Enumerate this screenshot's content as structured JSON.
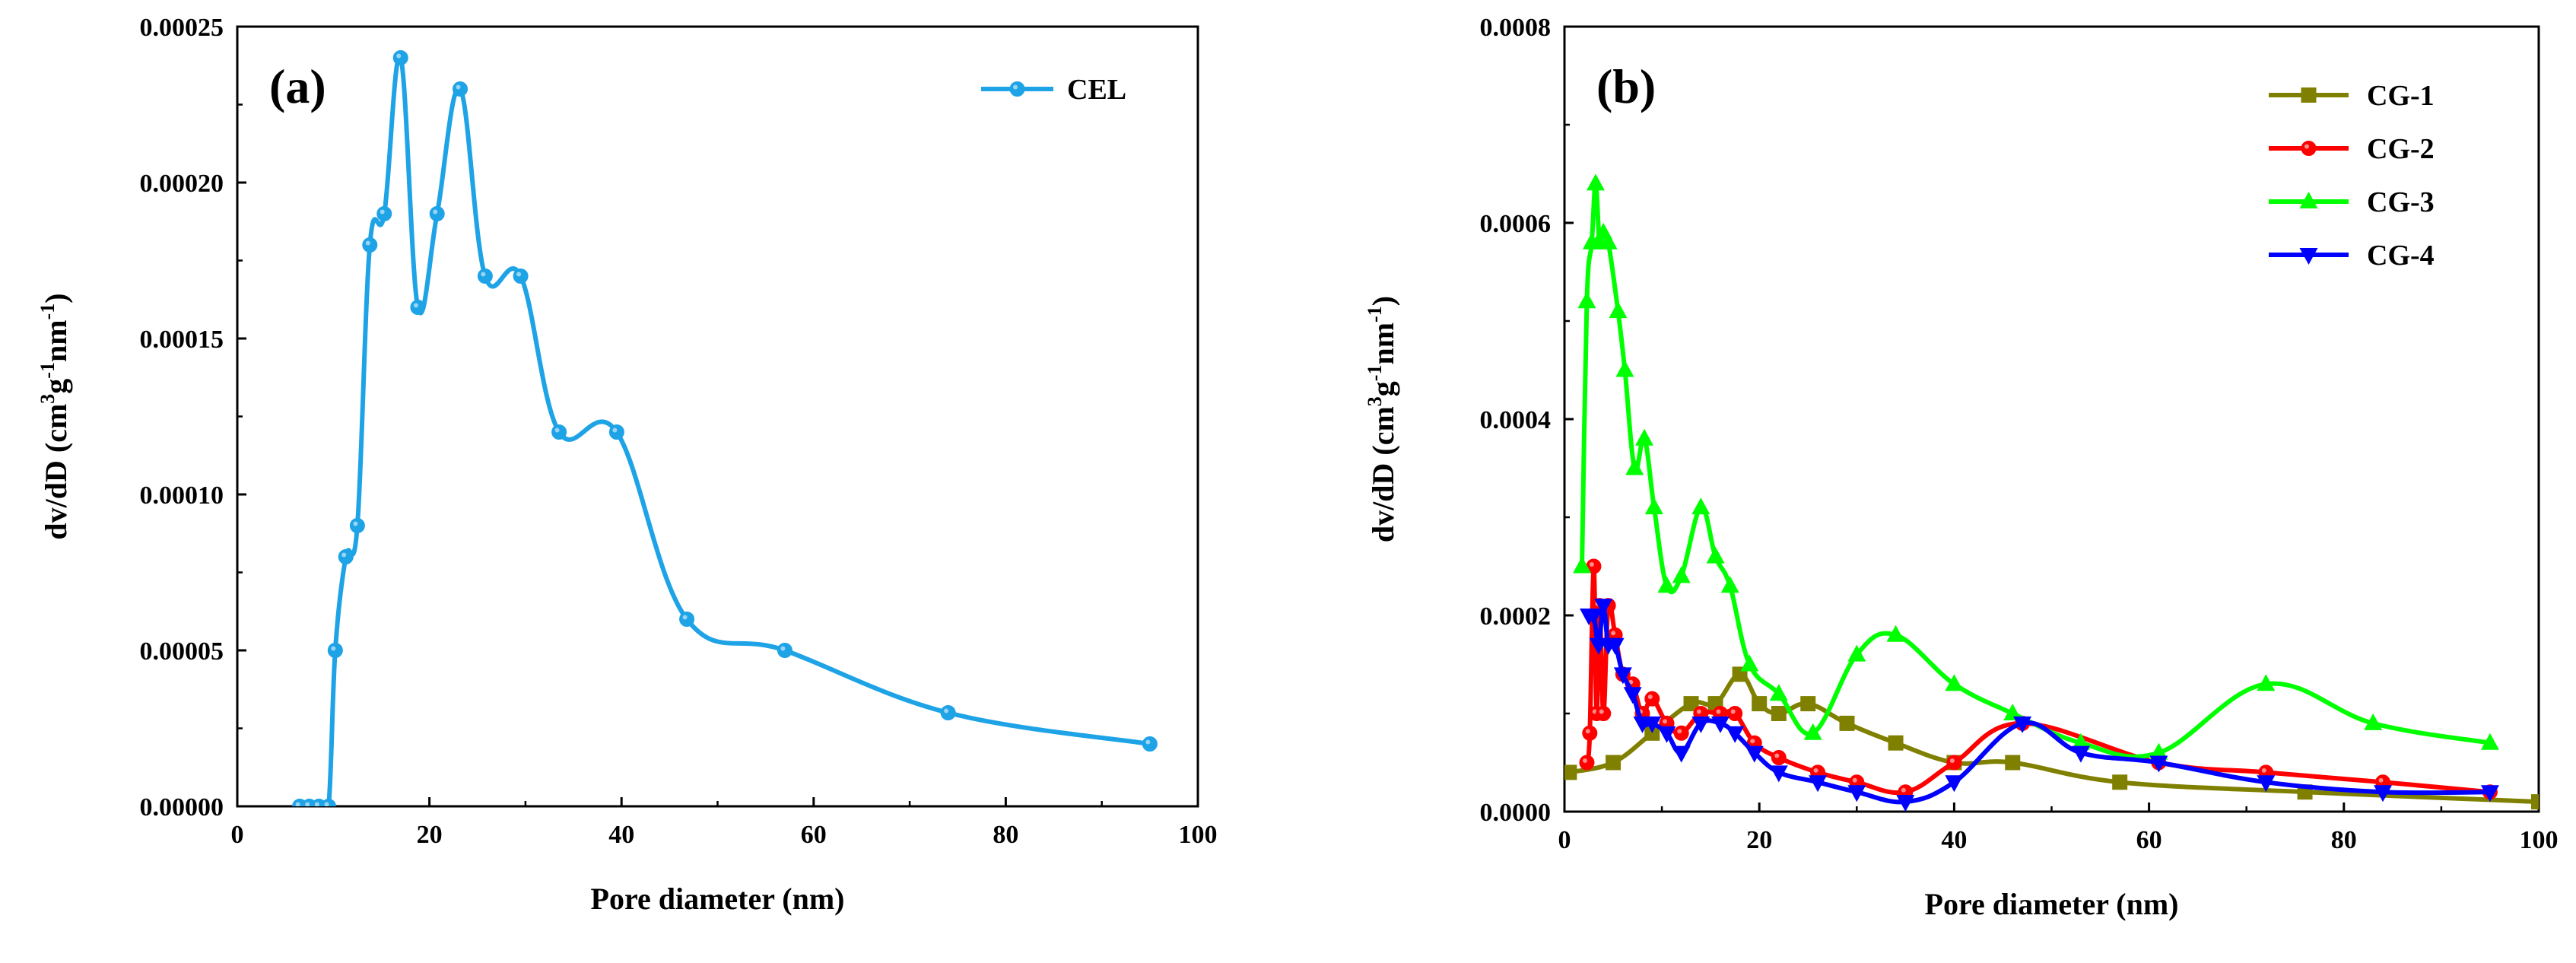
{
  "chart_data": [
    {
      "type": "line",
      "panel_label": "(a)",
      "xlabel": "Pore diameter (nm)",
      "ylabel": {
        "base": "dv/dD (cm",
        "sup1": "3",
        "mid": "g",
        "sup2": "-1",
        "mid2": "nm",
        "sup3": "-1",
        "end": ")"
      },
      "xlim": [
        0,
        100
      ],
      "ylim": [
        0,
        0.00025
      ],
      "xticks": [
        0,
        20,
        40,
        60,
        80,
        100
      ],
      "xtick_labels": [
        "0",
        "20",
        "40",
        "60",
        "80",
        "100"
      ],
      "yticks": [
        0,
        5e-05,
        0.0001,
        0.00015,
        0.0002,
        0.00025
      ],
      "ytick_labels": [
        "0.00000",
        "0.00005",
        "0.00010",
        "0.00015",
        "0.00020",
        "0.00025"
      ],
      "legend_position": "top-right",
      "series": [
        {
          "name": "CEL",
          "color": "#1EA3E6",
          "marker": "circle",
          "x": [
            6.5,
            7.5,
            8.5,
            9.5,
            10.2,
            11.3,
            12.5,
            13.8,
            15.3,
            17.0,
            18.8,
            20.8,
            23.2,
            25.8,
            29.5,
            33.5,
            39.5,
            46.8,
            57.0,
            74.0,
            95.0
          ],
          "y": [
            0,
            0,
            0,
            0,
            5e-05,
            8e-05,
            9e-05,
            0.00018,
            0.00019,
            0.00024,
            0.00016,
            0.00019,
            0.00023,
            0.00017,
            0.00017,
            0.00012,
            0.00012,
            6e-05,
            5e-05,
            3e-05,
            2e-05
          ]
        }
      ]
    },
    {
      "type": "line",
      "panel_label": "(b)",
      "xlabel": "Pore diameter (nm)",
      "ylabel": {
        "base": "dv/dD (cm",
        "sup1": "3",
        "mid": "g",
        "sup2": "-1",
        "mid2": "nm",
        "sup3": "-1",
        "end": ")"
      },
      "xlim": [
        0,
        100
      ],
      "ylim": [
        0,
        0.0008
      ],
      "xticks": [
        0,
        20,
        40,
        60,
        80,
        100
      ],
      "xtick_labels": [
        "0",
        "20",
        "40",
        "60",
        "80",
        "100"
      ],
      "yticks": [
        0,
        0.0002,
        0.0004,
        0.0006,
        0.0008
      ],
      "ytick_labels": [
        "0.0000",
        "0.0002",
        "0.0004",
        "0.0006",
        "0.0008"
      ],
      "legend_position": "top-right",
      "series": [
        {
          "name": "CG-1",
          "color": "#808000",
          "marker": "square",
          "x": [
            0.5,
            5,
            9,
            13,
            15.5,
            18,
            20,
            22,
            25,
            29,
            34,
            40,
            46,
            57,
            76,
            100
          ],
          "y": [
            4e-05,
            5e-05,
            8e-05,
            0.00011,
            0.00011,
            0.00014,
            0.00011,
            0.0001,
            0.00011,
            9e-05,
            7e-05,
            5e-05,
            5e-05,
            3e-05,
            2e-05,
            1e-05
          ]
        },
        {
          "name": "CG-2",
          "color": "#FF0000",
          "marker": "circle",
          "x": [
            2.3,
            2.6,
            3.0,
            3.3,
            3.6,
            4.0,
            4.5,
            5.2,
            6.0,
            7.0,
            8.0,
            9.0,
            10.5,
            12.0,
            14.0,
            16.0,
            17.5,
            19.5,
            22.0,
            26.0,
            30.0,
            35.0,
            40.0,
            47.0,
            61.0,
            72.0,
            84.0,
            95.0
          ],
          "y": [
            5e-05,
            8e-05,
            0.00025,
            0.0001,
            0.00021,
            0.0001,
            0.00021,
            0.00018,
            0.00014,
            0.00013,
            0.0001,
            0.000115,
            9e-05,
            8e-05,
            0.0001,
            0.0001,
            0.0001,
            7e-05,
            5.5e-05,
            4e-05,
            3e-05,
            2e-05,
            5e-05,
            9e-05,
            5e-05,
            4e-05,
            3e-05,
            2e-05
          ]
        },
        {
          "name": "CG-3",
          "color": "#00FF00",
          "marker": "triangle-up",
          "x": [
            1.8,
            2.3,
            2.8,
            3.2,
            3.6,
            4.0,
            4.5,
            5.5,
            6.2,
            7.2,
            8.2,
            9.2,
            10.5,
            12.0,
            14.0,
            15.5,
            17.0,
            19.0,
            22.0,
            25.5,
            30.0,
            34.0,
            40.0,
            46.0,
            53.0,
            61.0,
            72.0,
            83.0,
            95.0
          ],
          "y": [
            0.00025,
            0.00052,
            0.00058,
            0.00064,
            0.00058,
            0.00059,
            0.00058,
            0.00051,
            0.00045,
            0.00035,
            0.00038,
            0.00031,
            0.00023,
            0.00024,
            0.00031,
            0.00026,
            0.00023,
            0.00015,
            0.00012,
            8e-05,
            0.00016,
            0.00018,
            0.00013,
            0.0001,
            7e-05,
            6e-05,
            0.00013,
            9e-05,
            7e-05
          ]
        },
        {
          "name": "CG-4",
          "color": "#0000FF",
          "marker": "triangle-down",
          "x": [
            2.5,
            3.0,
            3.5,
            4.0,
            4.5,
            5.2,
            6.0,
            7.0,
            8.0,
            9.0,
            10.5,
            12.0,
            14.0,
            16.0,
            17.5,
            19.5,
            22.0,
            26.0,
            30.0,
            35.0,
            40.0,
            47.0,
            53.0,
            61.0,
            72.0,
            84.0,
            95.0
          ],
          "y": [
            0.0002,
            0.0002,
            0.00017,
            0.00021,
            0.00017,
            0.00017,
            0.00014,
            0.00012,
            9e-05,
            9e-05,
            8e-05,
            6e-05,
            9e-05,
            9e-05,
            8e-05,
            6e-05,
            4e-05,
            3e-05,
            2e-05,
            1e-05,
            3e-05,
            9e-05,
            6e-05,
            5e-05,
            3e-05,
            2e-05,
            2e-05
          ]
        }
      ]
    }
  ]
}
